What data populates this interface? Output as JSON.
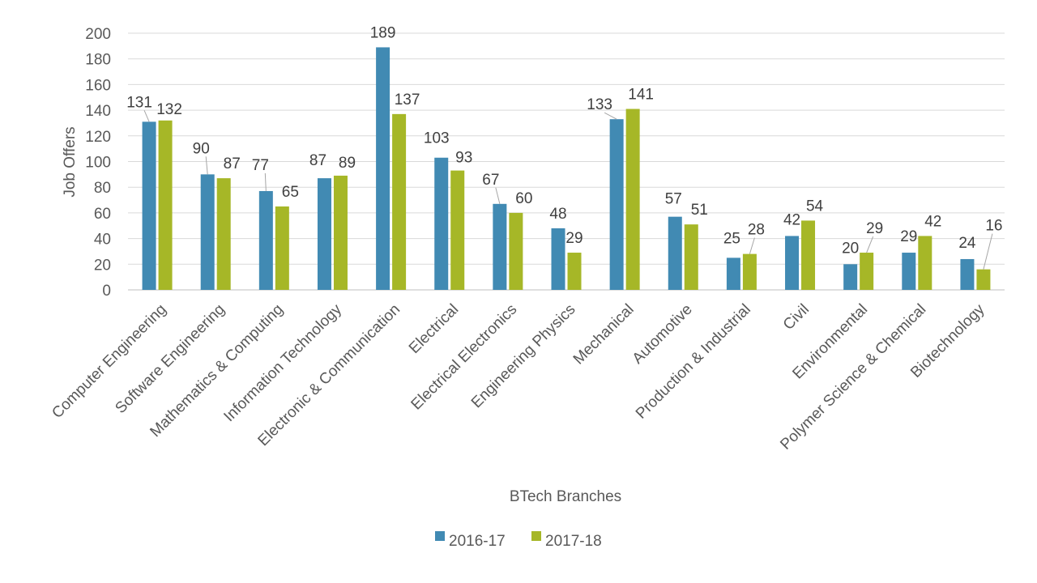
{
  "chart_data": {
    "type": "bar",
    "title": "",
    "xlabel": "BTech Branches",
    "ylabel": "Job Offers",
    "ylim": [
      0,
      200
    ],
    "yticks": [
      0,
      20,
      40,
      60,
      80,
      100,
      120,
      140,
      160,
      180,
      200
    ],
    "grid": true,
    "legend_position": "bottom",
    "categories": [
      "Computer Engineering",
      "Software Engineering",
      "Mathematics & Computing",
      "Information Technology",
      "Electronic & Communication",
      "Electrical",
      "Electrical Electronics",
      "Engineering Physics",
      "Mechanical",
      "Automotive",
      "Production & Industrial",
      "Civil",
      "Environmental",
      "Polymer Science & Chemical",
      "Biotechnology"
    ],
    "series": [
      {
        "name": "2016-17",
        "color": "#418ab3",
        "values": [
          131,
          90,
          77,
          87,
          189,
          103,
          67,
          48,
          133,
          57,
          25,
          42,
          20,
          29,
          24
        ]
      },
      {
        "name": "2017-18",
        "color": "#a6b727",
        "values": [
          132,
          87,
          65,
          89,
          137,
          93,
          60,
          29,
          141,
          51,
          28,
          54,
          29,
          42,
          16
        ]
      }
    ]
  }
}
